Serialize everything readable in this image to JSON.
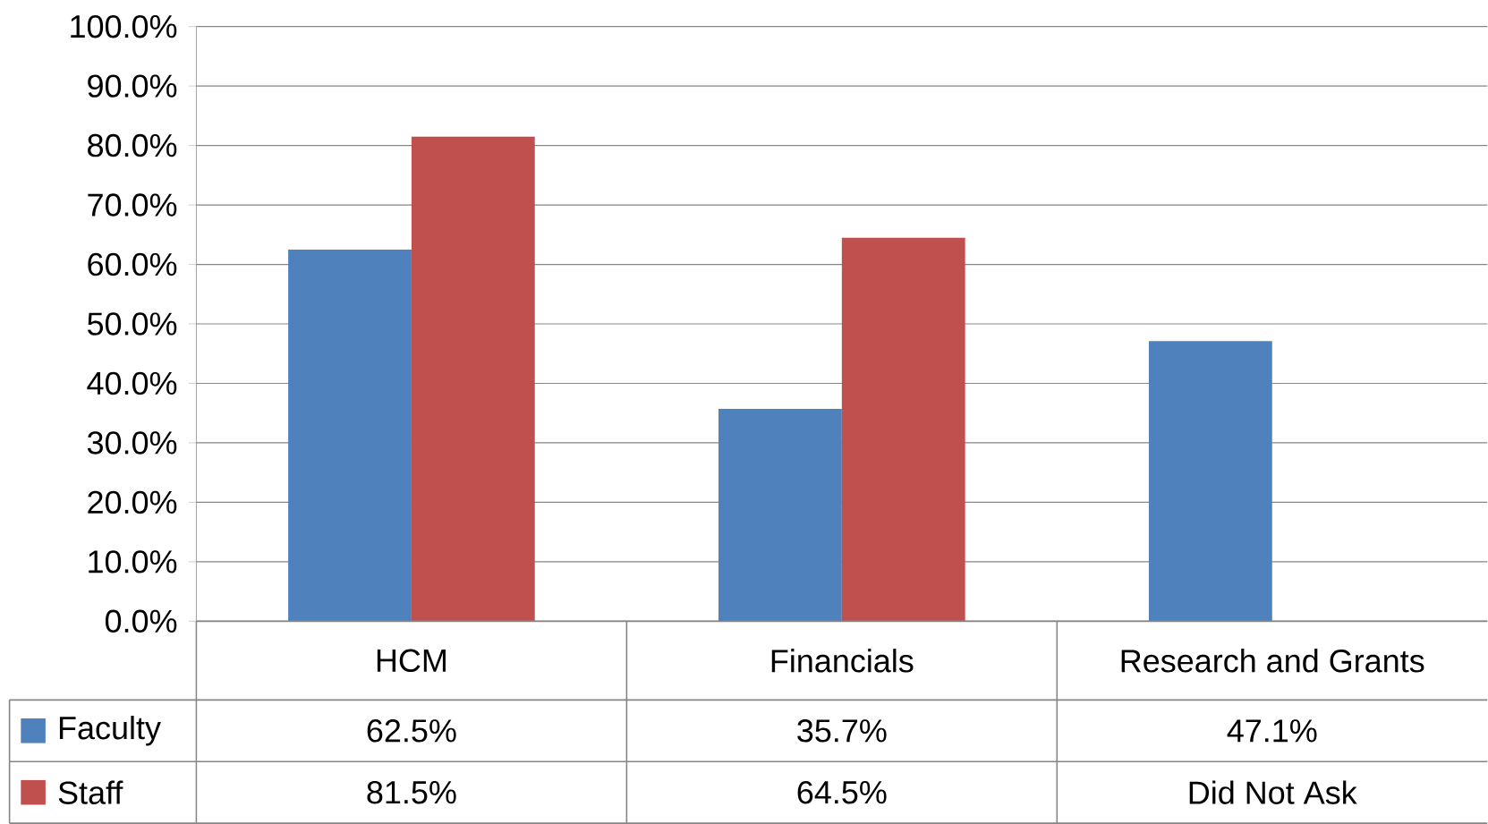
{
  "chart_data": {
    "type": "bar",
    "categories": [
      "HCM",
      "Financials",
      "Research and Grants"
    ],
    "series": [
      {
        "name": "Faculty",
        "color": "#4f81bd",
        "values": [
          62.5,
          35.7,
          47.1
        ],
        "value_labels": [
          "62.5%",
          "35.7%",
          "47.1%"
        ]
      },
      {
        "name": "Staff",
        "color": "#c0504d",
        "values": [
          81.5,
          64.5,
          null
        ],
        "value_labels": [
          "81.5%",
          "64.5%",
          "Did Not Ask"
        ]
      }
    ],
    "ylim": [
      0,
      100
    ],
    "yticks": [
      {
        "value": 0,
        "label": "0.0%"
      },
      {
        "value": 10,
        "label": "10.0%"
      },
      {
        "value": 20,
        "label": "20.0%"
      },
      {
        "value": 30,
        "label": "30.0%"
      },
      {
        "value": 40,
        "label": "40.0%"
      },
      {
        "value": 50,
        "label": "50.0%"
      },
      {
        "value": 60,
        "label": "60.0%"
      },
      {
        "value": 70,
        "label": "70.0%"
      },
      {
        "value": 80,
        "label": "80.0%"
      },
      {
        "value": 90,
        "label": "90.0%"
      },
      {
        "value": 100,
        "label": "100.0%"
      }
    ],
    "grid": "y",
    "legend": "bottom"
  }
}
